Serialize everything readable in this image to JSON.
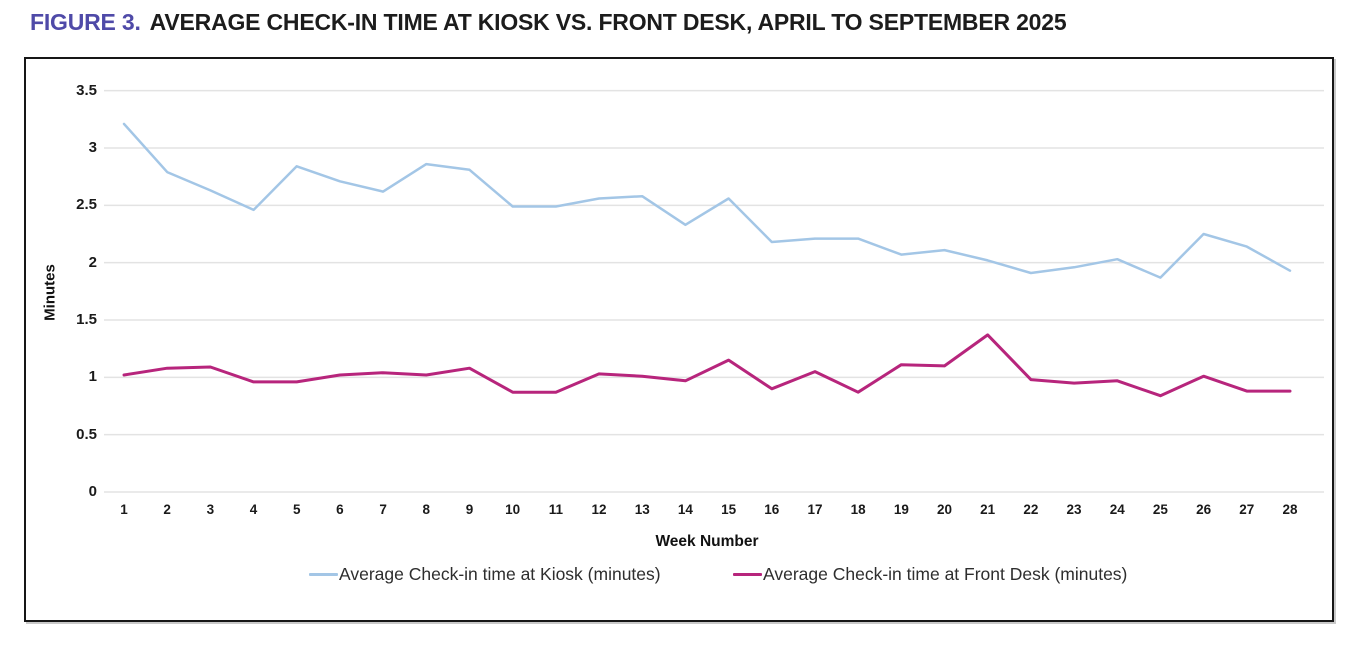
{
  "header": {
    "figure_label": "FIGURE 3.",
    "title": "AVERAGE CHECK-IN TIME AT KIOSK VS. FRONT DESK, APRIL TO SEPTEMBER 2025"
  },
  "colors": {
    "figure_label_accent": "#4f4aa8",
    "title_text": "#1c1c1c",
    "chart_border": "#161616",
    "gridline": "#e3e3e3",
    "kiosk_line": "#a3c6e6",
    "front_desk_line": "#b7257c",
    "tick_text": "#1a1a1a",
    "legend_text": "#2e2e2e"
  },
  "chart_data": {
    "type": "line",
    "title": "FIGURE 3. AVERAGE CHECK-IN TIME AT KIOSK VS. FRONT DESK, APRIL TO SEPTEMBER 2025",
    "xlabel": "Week Number",
    "ylabel": "Minutes",
    "ylim": [
      0,
      3.5
    ],
    "grid": "horizontal",
    "legend_position": "bottom",
    "y_tick_labels": [
      "3.5",
      "3",
      "2.5",
      "2",
      "1.5",
      "1",
      "0.5",
      "0"
    ],
    "y_tick_values": [
      3.5,
      3,
      2.5,
      2,
      1.5,
      1,
      0.5,
      0
    ],
    "categories": [
      1,
      2,
      3,
      4,
      5,
      6,
      7,
      8,
      9,
      10,
      11,
      12,
      13,
      14,
      15,
      16,
      17,
      18,
      19,
      20,
      21,
      22,
      23,
      24,
      25,
      26,
      27,
      28
    ],
    "series": [
      {
        "name": "Average Check-in time at Kiosk (minutes)",
        "color": "#a3c6e6",
        "stroke_width": 2.5,
        "values": [
          3.21,
          2.79,
          2.63,
          2.46,
          2.84,
          2.71,
          2.62,
          2.86,
          2.81,
          2.49,
          2.49,
          2.56,
          2.58,
          2.33,
          2.56,
          2.18,
          2.21,
          2.21,
          2.07,
          2.11,
          2.02,
          1.91,
          1.96,
          2.03,
          1.87,
          2.25,
          2.14,
          1.93
        ]
      },
      {
        "name": "Average Check-in time at Front Desk (minutes)",
        "color": "#b7257c",
        "stroke_width": 3,
        "values": [
          1.02,
          1.08,
          1.09,
          0.96,
          0.96,
          1.02,
          1.04,
          1.02,
          1.08,
          0.87,
          0.87,
          1.03,
          1.01,
          0.97,
          1.15,
          0.9,
          1.05,
          0.87,
          1.11,
          1.1,
          1.37,
          0.98,
          0.95,
          0.97,
          0.84,
          1.01,
          0.88,
          0.88
        ]
      }
    ]
  }
}
